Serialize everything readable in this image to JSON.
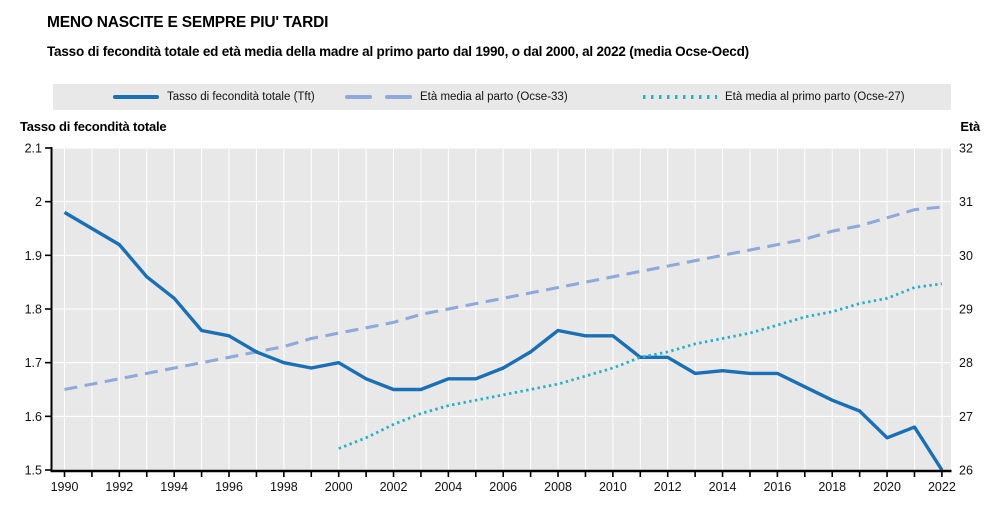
{
  "header": {
    "title": "MENO NASCITE E SEMPRE PIU' TARDI",
    "subtitle": "Tasso di fecondità totale ed età media della madre al primo parto dal 1990, o dal 2000, al 2022 (media Ocse-Oecd)"
  },
  "legend": {
    "items": [
      {
        "label": "Tasso di fecondità totale (Tft)",
        "swatch": "solid-line",
        "color": "#1a6fb5"
      },
      {
        "label": "Età media al parto (Ocse-33)",
        "swatch": "dashed-line",
        "color": "#8fa9da"
      },
      {
        "label": "Età media al primo parto (Ocse-27)",
        "swatch": "dotted-line",
        "color": "#27b1c7"
      }
    ]
  },
  "axes": {
    "left_title": "Tasso di fecondità totale",
    "right_title": "Età",
    "left_ticks": [
      {
        "value": 2.1,
        "label": "2.1"
      },
      {
        "value": 2.0,
        "label": "2"
      },
      {
        "value": 1.9,
        "label": "1.9"
      },
      {
        "value": 1.8,
        "label": "1.8"
      },
      {
        "value": 1.7,
        "label": "1.7"
      },
      {
        "value": 1.6,
        "label": "1.6"
      },
      {
        "value": 1.5,
        "label": "1.5"
      }
    ],
    "right_ticks": [
      {
        "value": 32,
        "label": "32"
      },
      {
        "value": 31,
        "label": "31"
      },
      {
        "value": 30,
        "label": "30"
      },
      {
        "value": 29,
        "label": "29"
      },
      {
        "value": 28,
        "label": "28"
      },
      {
        "value": 27,
        "label": "27"
      },
      {
        "value": 26,
        "label": "26"
      }
    ],
    "x_labeled_years": [
      1990,
      1992,
      1994,
      1996,
      1998,
      2000,
      2002,
      2004,
      2006,
      2008,
      2010,
      2012,
      2014,
      2016,
      2018,
      2020,
      2022
    ]
  },
  "chart_data": {
    "type": "line",
    "title": "MENO NASCITE E SEMPRE PIU' TARDI",
    "subtitle": "Tasso di fecondità totale ed età media della madre al primo parto dal 1990, o dal 2000, al 2022 (media Ocse-Oecd)",
    "legend_position": "top",
    "grid": true,
    "plot_bg": "#e8e8e8",
    "grid_color": "#ffffff",
    "x_range": [
      1990,
      2022
    ],
    "left_axis": {
      "label": "Tasso di fecondità totale",
      "range": [
        1.5,
        2.1
      ],
      "step": 0.1
    },
    "right_axis": {
      "label": "Età",
      "range": [
        26,
        32
      ],
      "step": 1
    },
    "series": [
      {
        "name": "Tasso di fecondità totale (Tft)",
        "axis": "left",
        "line_style": "solid",
        "color": "#1a6fb5",
        "x": [
          1990,
          1991,
          1992,
          1993,
          1994,
          1995,
          1996,
          1997,
          1998,
          1999,
          2000,
          2001,
          2002,
          2003,
          2004,
          2005,
          2006,
          2007,
          2008,
          2009,
          2010,
          2011,
          2012,
          2013,
          2014,
          2015,
          2016,
          2017,
          2018,
          2019,
          2020,
          2021,
          2022
        ],
        "values": [
          1.98,
          1.95,
          1.92,
          1.86,
          1.82,
          1.76,
          1.75,
          1.72,
          1.7,
          1.69,
          1.7,
          1.67,
          1.65,
          1.65,
          1.67,
          1.67,
          1.69,
          1.72,
          1.76,
          1.75,
          1.75,
          1.71,
          1.71,
          1.68,
          1.685,
          1.68,
          1.68,
          1.655,
          1.63,
          1.61,
          1.56,
          1.58,
          1.5
        ]
      },
      {
        "name": "Età media al parto (Ocse-33)",
        "axis": "right",
        "line_style": "dashed",
        "color": "#8fa9da",
        "x": [
          1990,
          1991,
          1992,
          1993,
          1994,
          1995,
          1996,
          1997,
          1998,
          1999,
          2000,
          2001,
          2002,
          2003,
          2004,
          2005,
          2006,
          2007,
          2008,
          2009,
          2010,
          2011,
          2012,
          2013,
          2014,
          2015,
          2016,
          2017,
          2018,
          2019,
          2020,
          2021,
          2022
        ],
        "values": [
          27.5,
          27.6,
          27.7,
          27.8,
          27.9,
          28.0,
          28.1,
          28.2,
          28.3,
          28.45,
          28.55,
          28.65,
          28.75,
          28.9,
          29.0,
          29.1,
          29.2,
          29.3,
          29.4,
          29.5,
          29.6,
          29.7,
          29.8,
          29.9,
          30.0,
          30.1,
          30.2,
          30.3,
          30.45,
          30.55,
          30.7,
          30.85,
          30.9
        ]
      },
      {
        "name": "Età media al primo parto (Ocse-27)",
        "axis": "right",
        "line_style": "dotted",
        "color": "#27b1c7",
        "x": [
          2000,
          2001,
          2002,
          2003,
          2004,
          2005,
          2006,
          2007,
          2008,
          2009,
          2010,
          2011,
          2012,
          2013,
          2014,
          2015,
          2016,
          2017,
          2018,
          2019,
          2020,
          2021,
          2022
        ],
        "values": [
          26.4,
          26.6,
          26.85,
          27.05,
          27.2,
          27.3,
          27.4,
          27.5,
          27.6,
          27.75,
          27.9,
          28.1,
          28.2,
          28.35,
          28.45,
          28.55,
          28.7,
          28.85,
          28.95,
          29.1,
          29.2,
          29.4,
          29.47
        ]
      }
    ]
  }
}
